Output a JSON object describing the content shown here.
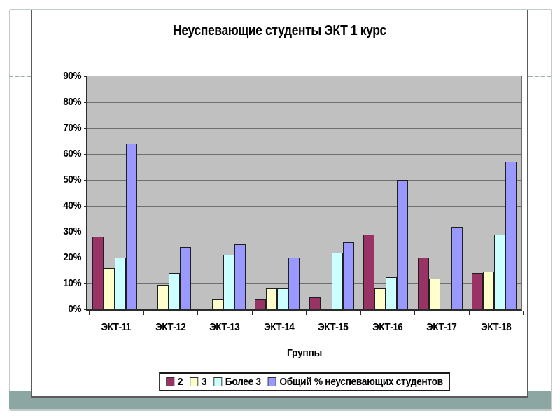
{
  "slide": {
    "background_color": "#ffffff",
    "frame_color": "#c2cbca",
    "accent_band_color": "#8ca6a4"
  },
  "chart": {
    "plot_background": "#c0c0c0",
    "gridline_color": "#6e6e6e",
    "axis_color": "#2b2b2b"
  },
  "chart_data": {
    "type": "bar",
    "title": "Неуспевающие студенты ЭКТ 1 курс",
    "xlabel": "Группы",
    "ylabel": "",
    "categories": [
      "ЭКТ-11",
      "ЭКТ-12",
      "ЭКТ-13",
      "ЭКТ-14",
      "ЭКТ-15",
      "ЭКТ-16",
      "ЭКТ-17",
      "ЭКТ-18"
    ],
    "series": [
      {
        "name": "2",
        "color": "#993366",
        "values": [
          28,
          0,
          0,
          4,
          4.5,
          29,
          20,
          14
        ]
      },
      {
        "name": "3",
        "color": "#ffffcc",
        "values": [
          16,
          9.5,
          4,
          8,
          0,
          8,
          12,
          14.5
        ]
      },
      {
        "name": "Более 3",
        "color": "#ccffff",
        "values": [
          20,
          14,
          21,
          8,
          22,
          12.5,
          0,
          29
        ]
      },
      {
        "name": "Общий % неуспевающих студентов",
        "color": "#9999ff",
        "values": [
          64,
          24,
          25,
          20,
          26,
          50,
          32,
          57
        ]
      }
    ],
    "ylim": [
      0,
      90
    ],
    "ytick_step": 10,
    "yticks": [
      "0%",
      "10%",
      "20%",
      "30%",
      "40%",
      "50%",
      "60%",
      "70%",
      "80%",
      "90%"
    ],
    "grid": true,
    "legend_position": "bottom"
  }
}
